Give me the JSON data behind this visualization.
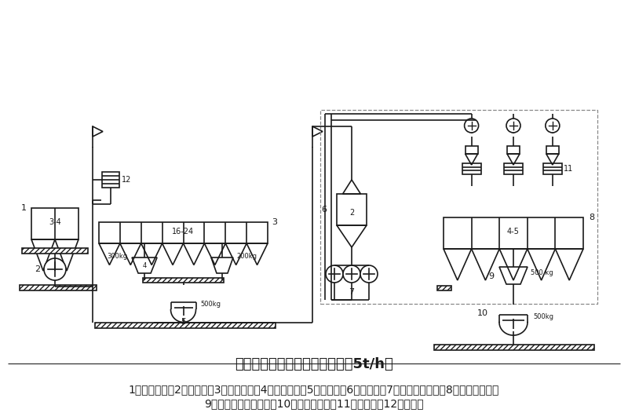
{
  "title": "二次先粉碎后配料再混合工艺（5t/h）",
  "caption_line1": "1、待粉碎仓；2、粉碎机；3、主配料仓；4、主配料秤；5、混合机；6、缓冲仓；7、二次微粉碎机；8、二次配料仓；",
  "caption_line2": "9、计量和二次配料秤；10、二级混合机；11、保险筛；12、分级筛",
  "bg_color": "#ffffff",
  "line_color": "#1a1a1a",
  "title_fontsize": 13,
  "caption_fontsize": 10
}
